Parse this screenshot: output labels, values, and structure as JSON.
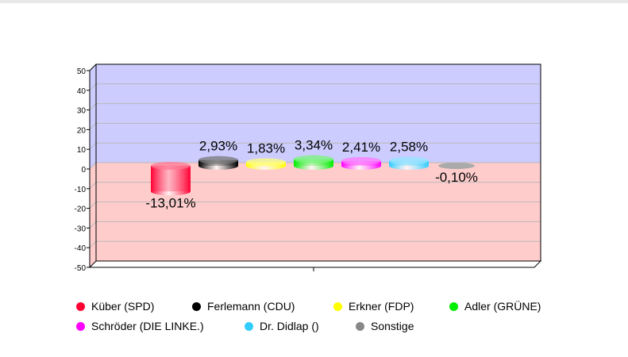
{
  "chart_data": {
    "type": "bar",
    "style": "3d-cylinder",
    "categories": [
      "Küber (SPD)",
      "Ferlemann (CDU)",
      "Erkner (FDP)",
      "Adler (GRÜNE)",
      "Schröder (DIE LINKE.)",
      "Dr. Didlap ()",
      "Sonstige"
    ],
    "values": [
      -13.01,
      2.93,
      1.83,
      3.34,
      2.41,
      2.58,
      -0.1
    ],
    "data_labels": [
      "-13,01%",
      "2,93%",
      "1,83%",
      "3,34%",
      "2,41%",
      "2,58%",
      "-0,10%"
    ],
    "colors": [
      "#ff0033",
      "#000000",
      "#ffff00",
      "#00ee00",
      "#ff00ff",
      "#33ccff",
      "#888888"
    ],
    "ylim": [
      -50,
      50
    ],
    "yticks": [
      50,
      40,
      30,
      20,
      10,
      0,
      -10,
      -20,
      -30,
      -40,
      -50
    ],
    "ytick_labels": [
      "50",
      "40",
      "30",
      "20",
      "10",
      "0",
      "-10",
      "-20",
      "-30",
      "-40",
      "-50"
    ],
    "background_positive": "#ccccff",
    "background_negative": "#ffcccc",
    "grid": true,
    "legend_position": "bottom",
    "title": "",
    "xlabel": "",
    "ylabel": ""
  }
}
